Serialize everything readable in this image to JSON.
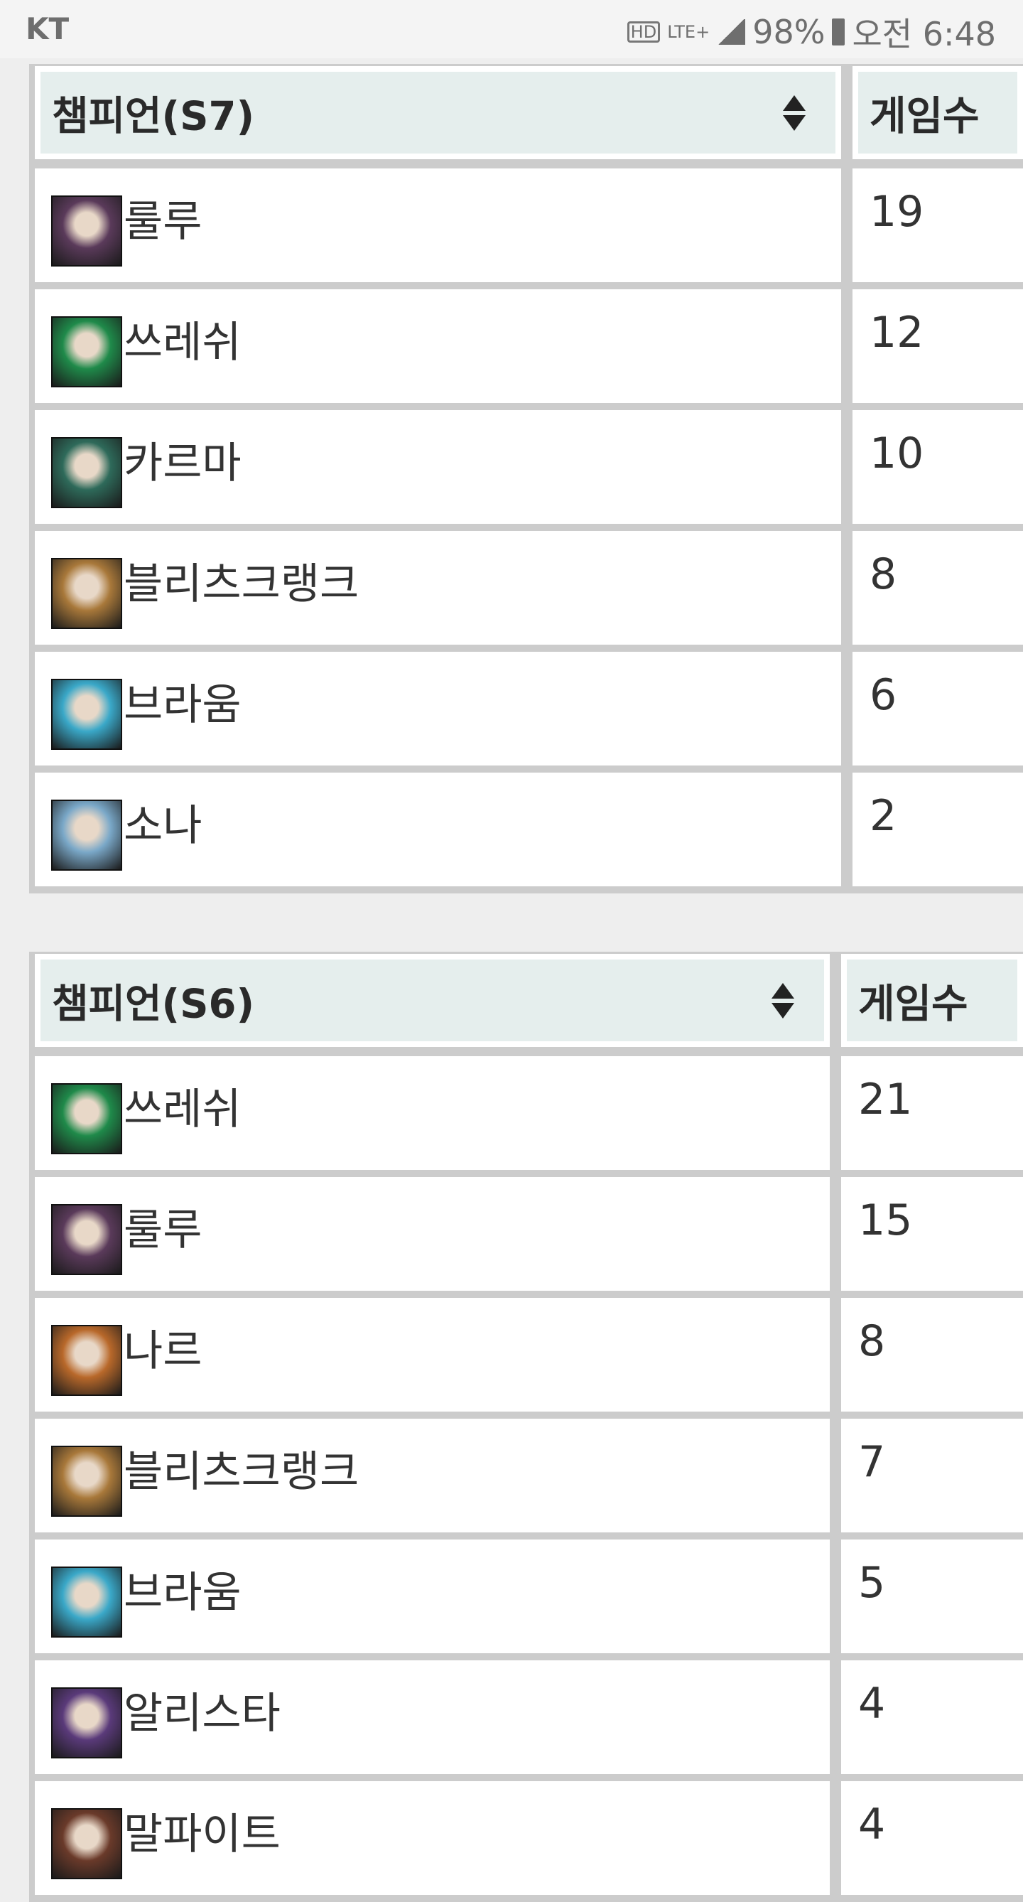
{
  "status_bar": {
    "carrier": "KT",
    "hd": "HD",
    "network": "LTE+",
    "battery": "98%",
    "time": "오전 6:48"
  },
  "tables": [
    {
      "header": {
        "champion": "챔피언(S7)",
        "games": "게임수"
      },
      "rows": [
        {
          "name": "룰루",
          "games": "19",
          "icon": "lulu-portrait",
          "color": "#5a3a5a"
        },
        {
          "name": "쓰레쉬",
          "games": "12",
          "icon": "thresh-portrait",
          "color": "#1f8a4a"
        },
        {
          "name": "카르마",
          "games": "10",
          "icon": "karma-portrait",
          "color": "#2e6a5a"
        },
        {
          "name": "블리츠크랭크",
          "games": "8",
          "icon": "blitzcrank-portrait",
          "color": "#a8783a"
        },
        {
          "name": "브라움",
          "games": "6",
          "icon": "braum-portrait",
          "color": "#3aa8c8"
        },
        {
          "name": "소나",
          "games": "2",
          "icon": "sona-portrait",
          "color": "#7aa8c8"
        }
      ]
    },
    {
      "header": {
        "champion": "챔피언(S6)",
        "games": "게임수"
      },
      "rows": [
        {
          "name": "쓰레쉬",
          "games": "21",
          "icon": "thresh-portrait",
          "color": "#1f8a4a"
        },
        {
          "name": "룰루",
          "games": "15",
          "icon": "lulu-portrait",
          "color": "#5a3a5a"
        },
        {
          "name": "나르",
          "games": "8",
          "icon": "gnar-portrait",
          "color": "#b8682a"
        },
        {
          "name": "블리츠크랭크",
          "games": "7",
          "icon": "blitzcrank-portrait",
          "color": "#a8783a"
        },
        {
          "name": "브라움",
          "games": "5",
          "icon": "braum-portrait",
          "color": "#3aa8c8"
        },
        {
          "name": "알리스타",
          "games": "4",
          "icon": "alistar-portrait",
          "color": "#5a3a7a"
        },
        {
          "name": "말파이트",
          "games": "4",
          "icon": "malphite-portrait",
          "color": "#6a3a2a"
        }
      ]
    }
  ]
}
